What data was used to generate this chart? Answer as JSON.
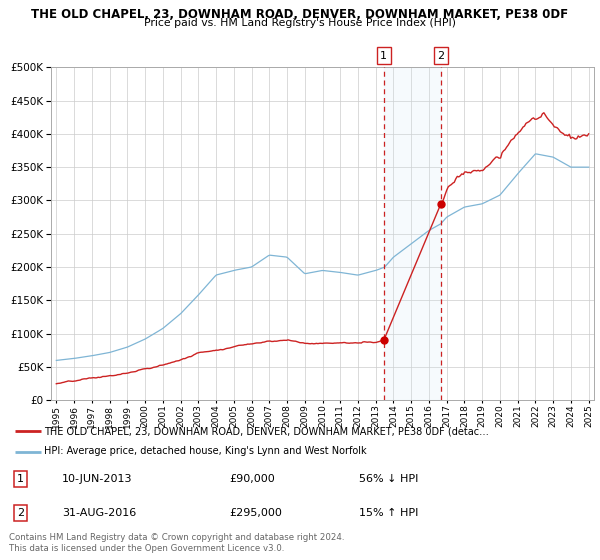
{
  "title": "THE OLD CHAPEL, 23, DOWNHAM ROAD, DENVER, DOWNHAM MARKET, PE38 0DF",
  "subtitle": "Price paid vs. HM Land Registry's House Price Index (HPI)",
  "background_color": "#ffffff",
  "plot_background_color": "#ffffff",
  "grid_color": "#cccccc",
  "hpi_color": "#7fb5d5",
  "shade_color": "#d0e8f5",
  "price_color": "#cc2222",
  "dot_color": "#cc0000",
  "vline_color": "#cc2222",
  "annotation1": {
    "label": "1",
    "date": "10-JUN-2013",
    "price": "£90,000",
    "pct": "56% ↓ HPI"
  },
  "annotation2": {
    "label": "2",
    "date": "31-AUG-2016",
    "price": "£295,000",
    "pct": "15% ↑ HPI"
  },
  "legend_line1": "THE OLD CHAPEL, 23, DOWNHAM ROAD, DENVER, DOWNHAM MARKET, PE38 0DF (detac…",
  "legend_line2": "HPI: Average price, detached house, King's Lynn and West Norfolk",
  "footer": "Contains HM Land Registry data © Crown copyright and database right 2024.\nThis data is licensed under the Open Government Licence v3.0.",
  "ylim": [
    0,
    500000
  ],
  "yticks": [
    0,
    50000,
    100000,
    150000,
    200000,
    250000,
    300000,
    350000,
    400000,
    450000,
    500000
  ],
  "purchase1_x": 2013.45,
  "purchase1_y": 90000,
  "purchase2_x": 2016.67,
  "purchase2_y": 295000,
  "xmin": 1995,
  "xmax": 2025
}
